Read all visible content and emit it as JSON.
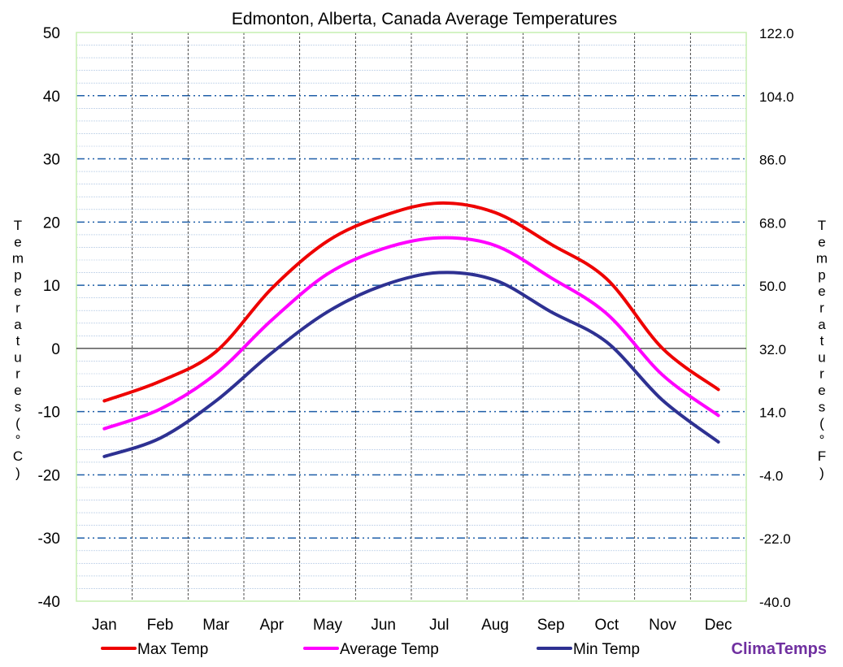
{
  "chart_data": {
    "type": "line",
    "title": "Edmonton, Alberta, Canada Average Temperatures",
    "ylabel_left": "Temperatures (°C)",
    "ylabel_right": "Temperatures (°F)",
    "left_ylabel_chars": [
      "T",
      "e",
      "m",
      "p",
      "e",
      "r",
      "a",
      "t",
      "u",
      "r",
      "e",
      "s",
      "(",
      "°",
      "C",
      ")"
    ],
    "right_ylabel_chars": [
      "T",
      "e",
      "m",
      "p",
      "e",
      "r",
      "a",
      "t",
      "u",
      "r",
      "e",
      "s",
      "(",
      "°",
      "F",
      ")"
    ],
    "categories": [
      "Jan",
      "Feb",
      "Mar",
      "Apr",
      "May",
      "Jun",
      "Jul",
      "Aug",
      "Sep",
      "Oct",
      "Nov",
      "Dec"
    ],
    "ylim": [
      -40,
      50
    ],
    "yticks_left": [
      50,
      40,
      30,
      20,
      10,
      0,
      -10,
      -20,
      -30,
      -40
    ],
    "yticks_right": [
      "122.0",
      "104.0",
      "86.0",
      "68.0",
      "50.0",
      "32.0",
      "14.0",
      "-4.0",
      "-22.0",
      "-40.0"
    ],
    "series": [
      {
        "name": "Max Temp",
        "color": "#ee0000",
        "values": [
          -8.3,
          -5.2,
          -0.5,
          9.5,
          17.0,
          21.0,
          23.0,
          21.5,
          16.5,
          11.0,
          0.0,
          -6.5
        ]
      },
      {
        "name": "Average Temp",
        "color": "#ff00ff",
        "values": [
          -12.7,
          -9.6,
          -4.0,
          4.5,
          11.8,
          15.8,
          17.5,
          16.3,
          11.2,
          5.5,
          -4.2,
          -10.6
        ]
      },
      {
        "name": "Min Temp",
        "color": "#2e3192",
        "values": [
          -17.1,
          -14.2,
          -8.3,
          -0.7,
          5.8,
          10.0,
          12.0,
          10.8,
          5.8,
          1.0,
          -8.2,
          -14.8
        ]
      }
    ],
    "grid": true,
    "legend_position": "bottom",
    "watermark": "ClimaTemps"
  }
}
